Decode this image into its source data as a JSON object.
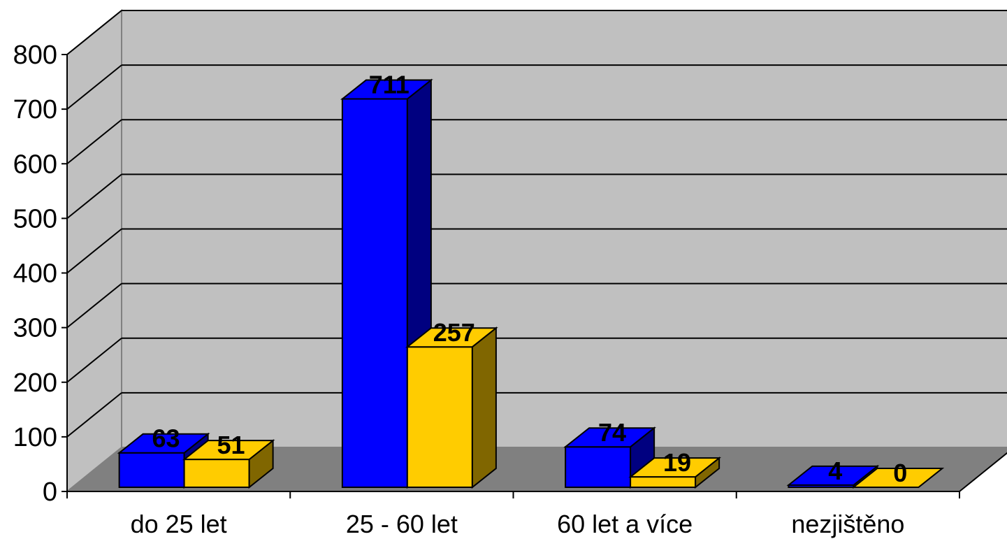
{
  "chart_data": {
    "type": "bar",
    "variant": "3d-clustered-column",
    "title": "",
    "xlabel": "",
    "ylabel": "",
    "categories": [
      "do 25 let",
      "25 - 60 let",
      "60 let a více",
      "nezjištěno"
    ],
    "series": [
      {
        "values": [
          63,
          711,
          74,
          4
        ],
        "color": "#0000ff",
        "side_color": "#000080"
      },
      {
        "values": [
          51,
          257,
          19,
          0
        ],
        "color": "#ffcc00",
        "side_color": "#806600"
      }
    ],
    "ylim": [
      0,
      800
    ],
    "yticks": [
      "0",
      "100",
      "200",
      "300",
      "400",
      "500",
      "600",
      "700",
      "800"
    ],
    "grid": true,
    "legend": "none",
    "colors": {
      "wall": "#c0c0c0",
      "floor": "#808080",
      "gridline": "#000000",
      "outline": "#000000"
    }
  }
}
